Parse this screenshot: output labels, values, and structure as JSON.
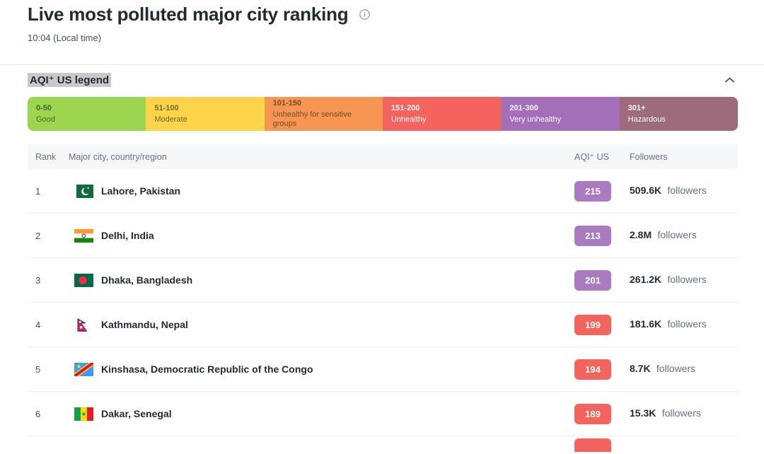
{
  "page": {
    "title": "Live most polluted major city ranking",
    "time": "10:04 (Local time)"
  },
  "legend": {
    "header": "AQI⁺ US legend",
    "segments": [
      {
        "range": "0-50",
        "label": "Good",
        "color": "#9BD64E",
        "text": "dark"
      },
      {
        "range": "51-100",
        "label": "Moderate",
        "color": "#FBD44A",
        "text": "dark"
      },
      {
        "range": "101-150",
        "label": "Unhealthy for sensitive groups",
        "color": "#F79552",
        "text": "dark"
      },
      {
        "range": "151-200",
        "label": "Unhealthy",
        "color": "#F4645F",
        "text": "light"
      },
      {
        "range": "201-300",
        "label": "Very unhealthy",
        "color": "#A36FB8",
        "text": "light"
      },
      {
        "range": "301+",
        "label": "Hazardous",
        "color": "#9D6B7B",
        "text": "light"
      }
    ]
  },
  "table": {
    "columns": {
      "rank": "Rank",
      "city": "Major city, country/region",
      "aqi": "AQI⁺ US",
      "followers": "Followers"
    },
    "rows": [
      {
        "rank": "1",
        "flag": "pakistan",
        "city": "Lahore, Pakistan",
        "aqi": "215",
        "badge_color": "#AB7BC0",
        "followers_value": "509.6K",
        "followers_suffix": "followers"
      },
      {
        "rank": "2",
        "flag": "india",
        "city": "Delhi, India",
        "aqi": "213",
        "badge_color": "#AB7BC0",
        "followers_value": "2.8M",
        "followers_suffix": "followers"
      },
      {
        "rank": "3",
        "flag": "bangladesh",
        "city": "Dhaka, Bangladesh",
        "aqi": "201",
        "badge_color": "#AB7BC0",
        "followers_value": "261.2K",
        "followers_suffix": "followers"
      },
      {
        "rank": "4",
        "flag": "nepal",
        "city": "Kathmandu, Nepal",
        "aqi": "199",
        "badge_color": "#F4645F",
        "followers_value": "181.6K",
        "followers_suffix": "followers"
      },
      {
        "rank": "5",
        "flag": "congo",
        "city": "Kinshasa, Democratic Republic of the Congo",
        "aqi": "194",
        "badge_color": "#F4645F",
        "followers_value": "8.7K",
        "followers_suffix": "followers"
      },
      {
        "rank": "6",
        "flag": "senegal",
        "city": "Dakar, Senegal",
        "aqi": "189",
        "badge_color": "#F4645F",
        "followers_value": "15.3K",
        "followers_suffix": "followers"
      }
    ],
    "partial_row": {
      "badge_color": "#F4645F"
    }
  }
}
